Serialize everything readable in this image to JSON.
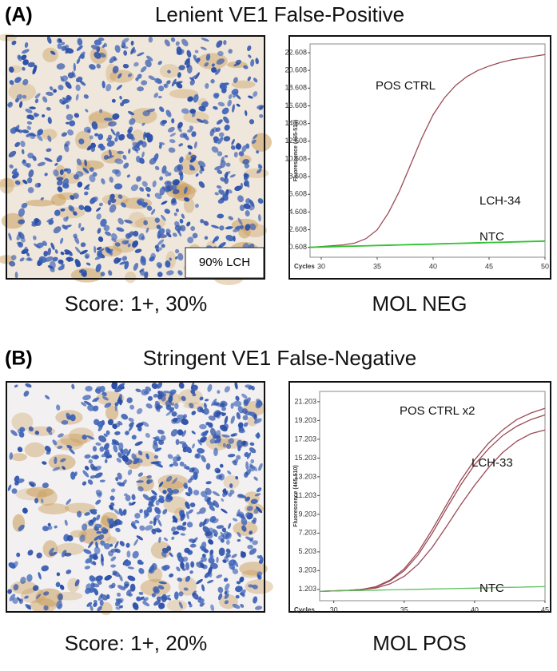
{
  "panels": [
    {
      "label": "(A)",
      "title": "Lenient VE1 False-Positive",
      "image_caption": "90% LCH",
      "score": "Score: 1+, 30%",
      "result": "MOL NEG"
    },
    {
      "label": "(B)",
      "title": "Stringent VE1 False-Negative",
      "score": "Score: 1+, 20%",
      "result": "MOL POS"
    }
  ],
  "chart_data": [
    {
      "type": "line",
      "xlabel": "Cycles",
      "ylabel": "Fluorescence (465-510)",
      "x": [
        29,
        30,
        31,
        32,
        33,
        34,
        35,
        36,
        37,
        38,
        39,
        40,
        41,
        42,
        43,
        44,
        45,
        46,
        47,
        48,
        49,
        50
      ],
      "series": [
        {
          "color": "#9a4a55",
          "values": [
            0.6,
            0.7,
            0.8,
            0.9,
            1.1,
            1.6,
            2.6,
            4.5,
            7.0,
            10.0,
            13.0,
            15.6,
            17.5,
            18.9,
            19.9,
            20.6,
            21.1,
            21.5,
            21.8,
            22.0,
            22.2,
            22.4
          ]
        },
        {
          "color": "#33c233",
          "values": [
            0.65,
            0.68,
            0.71,
            0.75,
            0.78,
            0.81,
            0.85,
            0.88,
            0.91,
            0.95,
            0.98,
            1.01,
            1.05,
            1.08,
            1.11,
            1.15,
            1.18,
            1.21,
            1.25,
            1.28,
            1.31,
            1.35
          ]
        },
        {
          "color": "#33c233",
          "values": [
            0.6,
            0.63,
            0.66,
            0.7,
            0.73,
            0.76,
            0.8,
            0.83,
            0.86,
            0.9,
            0.93,
            0.96,
            1.0,
            1.03,
            1.06,
            1.1,
            1.13,
            1.16,
            1.2,
            1.23,
            1.26,
            1.3
          ]
        }
      ],
      "annotations": [
        "POS CTRL",
        "LCH-34",
        "NTC"
      ],
      "xlim": [
        29,
        50
      ],
      "xticks": [
        30,
        35,
        40,
        45,
        50
      ],
      "ylim": [
        -0.5,
        23.6
      ],
      "yticks": [
        0.608,
        2.608,
        4.608,
        6.608,
        8.608,
        10.608,
        12.608,
        14.608,
        16.608,
        18.608,
        20.608,
        22.608
      ]
    },
    {
      "type": "line",
      "xlabel": "Cycles",
      "ylabel": "Fluorescence (465-510)",
      "x": [
        29,
        30,
        31,
        32,
        33,
        34,
        35,
        36,
        37,
        38,
        39,
        40,
        41,
        42,
        43,
        44,
        45
      ],
      "series": [
        {
          "color": "#9a4a55",
          "values": [
            1.0,
            1.05,
            1.1,
            1.2,
            1.5,
            2.2,
            3.4,
            5.2,
            7.6,
            10.2,
            12.8,
            15.0,
            16.8,
            18.2,
            19.3,
            20.0,
            20.5
          ]
        },
        {
          "color": "#9a4a55",
          "values": [
            1.0,
            1.05,
            1.1,
            1.2,
            1.45,
            2.1,
            3.2,
            4.9,
            7.2,
            9.8,
            12.3,
            14.5,
            16.2,
            17.6,
            18.6,
            19.3,
            19.8
          ]
        },
        {
          "color": "#9a4a55",
          "values": [
            1.0,
            1.05,
            1.1,
            1.2,
            1.35,
            1.8,
            2.6,
            3.9,
            5.7,
            7.9,
            10.2,
            12.3,
            14.2,
            15.8,
            17.0,
            17.8,
            18.2
          ]
        },
        {
          "color": "#5fbf5f",
          "values": [
            1.0,
            1.03,
            1.06,
            1.09,
            1.12,
            1.16,
            1.19,
            1.22,
            1.25,
            1.28,
            1.31,
            1.34,
            1.37,
            1.41,
            1.44,
            1.47,
            1.5
          ]
        }
      ],
      "annotations": [
        "POS CTRL x2",
        "LCH-33",
        "NTC"
      ],
      "xlim": [
        29,
        45
      ],
      "xticks": [
        30,
        35,
        40,
        45
      ],
      "ylim": [
        0,
        22.3
      ],
      "yticks": [
        1.203,
        3.203,
        5.203,
        7.203,
        9.203,
        11.203,
        13.203,
        15.203,
        17.203,
        19.203,
        21.203
      ]
    }
  ]
}
